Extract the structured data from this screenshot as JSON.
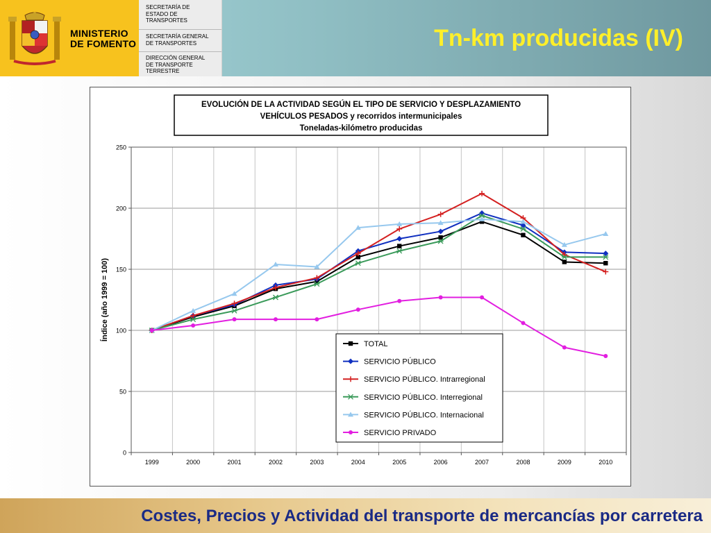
{
  "header": {
    "ministry_line1": "MINISTERIO",
    "ministry_line2": "DE FOMENTO",
    "secretaria_estado": "SECRETARÍA DE\nESTADO DE\nTRANSPORTES",
    "secretaria_general": "SECRETARÍA GENERAL\nDE TRANSPORTES",
    "direccion_general": "DIRECCIÓN GENERAL\nDE TRANSPORTE\nTERRESTRE",
    "page_title": "Tn-km producidas (IV)"
  },
  "footer": {
    "text": "Costes, Precios y Actividad del transporte de mercancías por carretera"
  },
  "colors": {
    "logo_bg": "#f7c21e",
    "title": "#ffef2a",
    "footer_text": "#1a2a85"
  },
  "chart_data": {
    "type": "line",
    "title_lines": [
      "EVOLUCIÓN  DE  LA  ACTIVIDAD  SEGÚN  EL  TIPO  DE  SERVICIO  Y  DESPLAZAMIENTO",
      "VEHÍCULOS  PESADOS  y  recorridos  intermunicipales",
      "Toneladas-kilómetro producidas"
    ],
    "xlabel": "",
    "ylabel": "Índice (año 1999 = 100)",
    "ylim": [
      0,
      250
    ],
    "yticks": [
      0,
      50,
      100,
      150,
      200,
      250
    ],
    "grid": true,
    "legend_position": "bottom-center",
    "categories": [
      "1999",
      "2000",
      "2001",
      "2002",
      "2003",
      "2004",
      "2005",
      "2006",
      "2007",
      "2008",
      "2009",
      "2010"
    ],
    "series": [
      {
        "name": "TOTAL",
        "color": "#000000",
        "marker": "square",
        "values": [
          100,
          111,
          120,
          134,
          140,
          160,
          169,
          176,
          189,
          178,
          156,
          155
        ]
      },
      {
        "name": "SERVICIO PÚBLICO",
        "color": "#1030c0",
        "marker": "diamond",
        "values": [
          100,
          112,
          121,
          137,
          142,
          165,
          175,
          181,
          196,
          186,
          164,
          163
        ]
      },
      {
        "name": "SERVICIO PÚBLICO. Intrarregional",
        "color": "#d42020",
        "marker": "plus",
        "values": [
          100,
          112,
          122,
          135,
          143,
          163,
          183,
          195,
          212,
          192,
          162,
          148
        ]
      },
      {
        "name": "SERVICIO PÚBLICO. Interregional",
        "color": "#3a9a5a",
        "marker": "star",
        "values": [
          100,
          109,
          116,
          127,
          138,
          155,
          165,
          173,
          194,
          183,
          160,
          160
        ]
      },
      {
        "name": "SERVICIO PÚBLICO. Internacional",
        "color": "#96c8ee",
        "marker": "triangle",
        "values": [
          100,
          116,
          130,
          154,
          152,
          184,
          187,
          188,
          191,
          189,
          170,
          179
        ]
      },
      {
        "name": "SERVICIO PRIVADO",
        "color": "#e21ee0",
        "marker": "circle",
        "values": [
          100,
          104,
          109,
          109,
          109,
          117,
          124,
          127,
          127,
          106,
          86,
          79
        ]
      }
    ]
  }
}
